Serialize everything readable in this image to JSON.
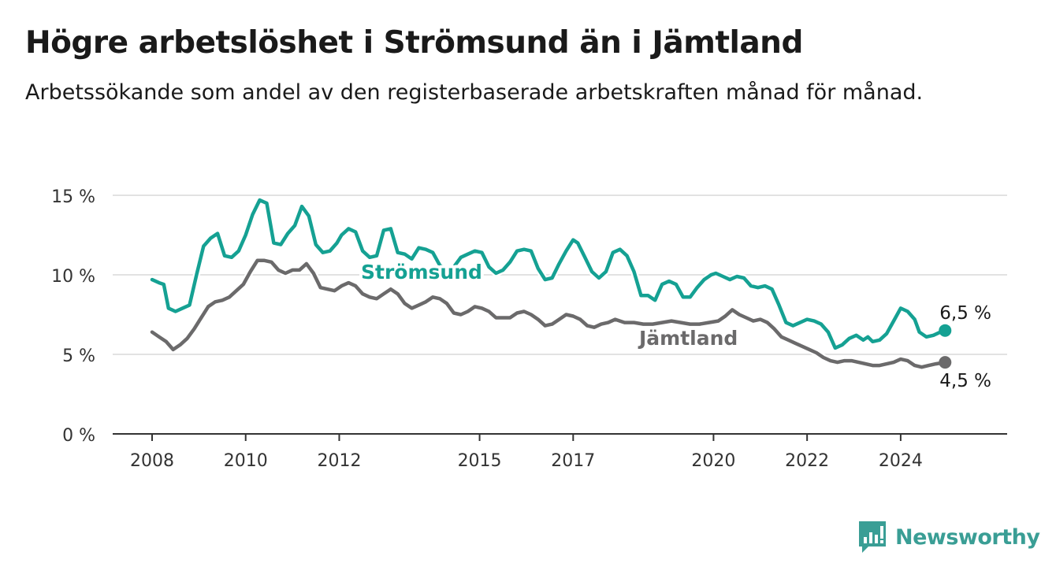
{
  "chart_data": {
    "type": "line",
    "title": "Högre arbetslöshet i Strömsund än i Jämtland",
    "subtitle": "Arbetssökande som andel av den registerbaserade arbetskraften månad för månad.",
    "y_unit": "%",
    "ylim": [
      0,
      15
    ],
    "yticks": [
      0,
      5,
      10,
      15
    ],
    "ytick_labels": [
      "0 %",
      "5 %",
      "10 %",
      "15 %"
    ],
    "xlim": [
      2008.0,
      2025.4
    ],
    "xticks": [
      2008,
      2010,
      2012,
      2015,
      2017,
      2020,
      2022,
      2024
    ],
    "xtick_labels": [
      "2008",
      "2010",
      "2012",
      "2015",
      "2017",
      "2020",
      "2022",
      "2024"
    ],
    "grid": true,
    "legend": "inline labels",
    "series": [
      {
        "name": "Strömsund",
        "color": "#15a193",
        "end_label": "6,5 %",
        "points": [
          [
            2008.0,
            9.7
          ],
          [
            2008.15,
            9.5
          ],
          [
            2008.25,
            9.4
          ],
          [
            2008.35,
            7.9
          ],
          [
            2008.5,
            7.7
          ],
          [
            2008.65,
            7.9
          ],
          [
            2008.8,
            8.1
          ],
          [
            2008.95,
            10.0
          ],
          [
            2009.1,
            11.8
          ],
          [
            2009.25,
            12.3
          ],
          [
            2009.4,
            12.6
          ],
          [
            2009.55,
            11.2
          ],
          [
            2009.7,
            11.1
          ],
          [
            2009.85,
            11.5
          ],
          [
            2010.0,
            12.5
          ],
          [
            2010.15,
            13.8
          ],
          [
            2010.3,
            14.7
          ],
          [
            2010.45,
            14.5
          ],
          [
            2010.6,
            12.0
          ],
          [
            2010.75,
            11.9
          ],
          [
            2010.9,
            12.6
          ],
          [
            2011.05,
            13.1
          ],
          [
            2011.2,
            14.3
          ],
          [
            2011.35,
            13.7
          ],
          [
            2011.5,
            11.9
          ],
          [
            2011.65,
            11.4
          ],
          [
            2011.8,
            11.5
          ],
          [
            2011.95,
            12.0
          ],
          [
            2012.05,
            12.5
          ],
          [
            2012.2,
            12.9
          ],
          [
            2012.35,
            12.7
          ],
          [
            2012.5,
            11.5
          ],
          [
            2012.65,
            11.1
          ],
          [
            2012.8,
            11.2
          ],
          [
            2012.95,
            12.8
          ],
          [
            2013.1,
            12.9
          ],
          [
            2013.25,
            11.4
          ],
          [
            2013.4,
            11.3
          ],
          [
            2013.55,
            11.0
          ],
          [
            2013.7,
            11.7
          ],
          [
            2013.85,
            11.6
          ],
          [
            2014.0,
            11.4
          ],
          [
            2014.15,
            10.6
          ],
          [
            2014.3,
            10.3
          ],
          [
            2014.45,
            10.5
          ],
          [
            2014.6,
            11.1
          ],
          [
            2014.75,
            11.3
          ],
          [
            2014.9,
            11.5
          ],
          [
            2015.05,
            11.4
          ],
          [
            2015.2,
            10.5
          ],
          [
            2015.35,
            10.1
          ],
          [
            2015.5,
            10.3
          ],
          [
            2015.65,
            10.8
          ],
          [
            2015.8,
            11.5
          ],
          [
            2015.95,
            11.6
          ],
          [
            2016.1,
            11.5
          ],
          [
            2016.25,
            10.4
          ],
          [
            2016.4,
            9.7
          ],
          [
            2016.55,
            9.8
          ],
          [
            2016.7,
            10.7
          ],
          [
            2016.85,
            11.5
          ],
          [
            2017.0,
            12.2
          ],
          [
            2017.1,
            12.0
          ],
          [
            2017.25,
            11.1
          ],
          [
            2017.4,
            10.2
          ],
          [
            2017.55,
            9.8
          ],
          [
            2017.7,
            10.2
          ],
          [
            2017.85,
            11.4
          ],
          [
            2018.0,
            11.6
          ],
          [
            2018.15,
            11.2
          ],
          [
            2018.3,
            10.2
          ],
          [
            2018.45,
            8.7
          ],
          [
            2018.6,
            8.7
          ],
          [
            2018.75,
            8.4
          ],
          [
            2018.9,
            9.4
          ],
          [
            2019.05,
            9.6
          ],
          [
            2019.2,
            9.4
          ],
          [
            2019.35,
            8.6
          ],
          [
            2019.5,
            8.6
          ],
          [
            2019.65,
            9.2
          ],
          [
            2019.8,
            9.7
          ],
          [
            2019.95,
            10.0
          ],
          [
            2020.05,
            10.1
          ],
          [
            2020.2,
            9.9
          ],
          [
            2020.35,
            9.7
          ],
          [
            2020.5,
            9.9
          ],
          [
            2020.65,
            9.8
          ],
          [
            2020.8,
            9.3
          ],
          [
            2020.95,
            9.2
          ],
          [
            2021.1,
            9.3
          ],
          [
            2021.25,
            9.1
          ],
          [
            2021.4,
            8.1
          ],
          [
            2021.55,
            7.0
          ],
          [
            2021.7,
            6.8
          ],
          [
            2021.85,
            7.0
          ],
          [
            2022.0,
            7.2
          ],
          [
            2022.15,
            7.1
          ],
          [
            2022.3,
            6.9
          ],
          [
            2022.45,
            6.4
          ],
          [
            2022.6,
            5.4
          ],
          [
            2022.75,
            5.6
          ],
          [
            2022.9,
            6.0
          ],
          [
            2023.05,
            6.2
          ],
          [
            2023.2,
            5.9
          ],
          [
            2023.3,
            6.1
          ],
          [
            2023.4,
            5.8
          ],
          [
            2023.55,
            5.9
          ],
          [
            2023.7,
            6.3
          ],
          [
            2023.85,
            7.1
          ],
          [
            2024.0,
            7.9
          ],
          [
            2024.15,
            7.7
          ],
          [
            2024.3,
            7.2
          ],
          [
            2024.4,
            6.4
          ],
          [
            2024.55,
            6.1
          ],
          [
            2024.7,
            6.2
          ],
          [
            2024.85,
            6.4
          ],
          [
            2024.95,
            6.5
          ]
        ]
      },
      {
        "name": "Jämtland",
        "color": "#6b6a6b",
        "end_label": "4,5 %",
        "points": [
          [
            2008.0,
            6.4
          ],
          [
            2008.15,
            6.1
          ],
          [
            2008.3,
            5.8
          ],
          [
            2008.45,
            5.3
          ],
          [
            2008.6,
            5.6
          ],
          [
            2008.75,
            6.0
          ],
          [
            2008.9,
            6.6
          ],
          [
            2009.05,
            7.3
          ],
          [
            2009.2,
            8.0
          ],
          [
            2009.35,
            8.3
          ],
          [
            2009.5,
            8.4
          ],
          [
            2009.65,
            8.6
          ],
          [
            2009.8,
            9.0
          ],
          [
            2009.95,
            9.4
          ],
          [
            2010.1,
            10.2
          ],
          [
            2010.25,
            10.9
          ],
          [
            2010.4,
            10.9
          ],
          [
            2010.55,
            10.8
          ],
          [
            2010.7,
            10.3
          ],
          [
            2010.85,
            10.1
          ],
          [
            2011.0,
            10.3
          ],
          [
            2011.15,
            10.3
          ],
          [
            2011.3,
            10.7
          ],
          [
            2011.45,
            10.1
          ],
          [
            2011.6,
            9.2
          ],
          [
            2011.75,
            9.1
          ],
          [
            2011.9,
            9.0
          ],
          [
            2012.05,
            9.3
          ],
          [
            2012.2,
            9.5
          ],
          [
            2012.35,
            9.3
          ],
          [
            2012.5,
            8.8
          ],
          [
            2012.65,
            8.6
          ],
          [
            2012.8,
            8.5
          ],
          [
            2012.95,
            8.8
          ],
          [
            2013.1,
            9.1
          ],
          [
            2013.25,
            8.8
          ],
          [
            2013.4,
            8.2
          ],
          [
            2013.55,
            7.9
          ],
          [
            2013.7,
            8.1
          ],
          [
            2013.85,
            8.3
          ],
          [
            2014.0,
            8.6
          ],
          [
            2014.15,
            8.5
          ],
          [
            2014.3,
            8.2
          ],
          [
            2014.45,
            7.6
          ],
          [
            2014.6,
            7.5
          ],
          [
            2014.75,
            7.7
          ],
          [
            2014.9,
            8.0
          ],
          [
            2015.05,
            7.9
          ],
          [
            2015.2,
            7.7
          ],
          [
            2015.35,
            7.3
          ],
          [
            2015.5,
            7.3
          ],
          [
            2015.65,
            7.3
          ],
          [
            2015.8,
            7.6
          ],
          [
            2015.95,
            7.7
          ],
          [
            2016.1,
            7.5
          ],
          [
            2016.25,
            7.2
          ],
          [
            2016.4,
            6.8
          ],
          [
            2016.55,
            6.9
          ],
          [
            2016.7,
            7.2
          ],
          [
            2016.85,
            7.5
          ],
          [
            2017.0,
            7.4
          ],
          [
            2017.15,
            7.2
          ],
          [
            2017.3,
            6.8
          ],
          [
            2017.45,
            6.7
          ],
          [
            2017.6,
            6.9
          ],
          [
            2017.75,
            7.0
          ],
          [
            2017.9,
            7.2
          ],
          [
            2018.1,
            7.0
          ],
          [
            2018.3,
            7.0
          ],
          [
            2018.5,
            6.9
          ],
          [
            2018.7,
            6.9
          ],
          [
            2018.9,
            7.0
          ],
          [
            2019.1,
            7.1
          ],
          [
            2019.3,
            7.0
          ],
          [
            2019.5,
            6.9
          ],
          [
            2019.7,
            6.9
          ],
          [
            2019.9,
            7.0
          ],
          [
            2020.1,
            7.1
          ],
          [
            2020.25,
            7.4
          ],
          [
            2020.4,
            7.8
          ],
          [
            2020.55,
            7.5
          ],
          [
            2020.7,
            7.3
          ],
          [
            2020.85,
            7.1
          ],
          [
            2021.0,
            7.2
          ],
          [
            2021.15,
            7.0
          ],
          [
            2021.3,
            6.6
          ],
          [
            2021.45,
            6.1
          ],
          [
            2021.6,
            5.9
          ],
          [
            2021.75,
            5.7
          ],
          [
            2021.9,
            5.5
          ],
          [
            2022.05,
            5.3
          ],
          [
            2022.2,
            5.1
          ],
          [
            2022.35,
            4.8
          ],
          [
            2022.5,
            4.6
          ],
          [
            2022.65,
            4.5
          ],
          [
            2022.8,
            4.6
          ],
          [
            2022.95,
            4.6
          ],
          [
            2023.1,
            4.5
          ],
          [
            2023.25,
            4.4
          ],
          [
            2023.4,
            4.3
          ],
          [
            2023.55,
            4.3
          ],
          [
            2023.7,
            4.4
          ],
          [
            2023.85,
            4.5
          ],
          [
            2024.0,
            4.7
          ],
          [
            2024.15,
            4.6
          ],
          [
            2024.3,
            4.3
          ],
          [
            2024.45,
            4.2
          ],
          [
            2024.6,
            4.3
          ],
          [
            2024.75,
            4.4
          ],
          [
            2024.95,
            4.5
          ]
        ]
      }
    ],
    "point_labels": {
      "stromsund_end": "6,5 %",
      "jamtland_end": "4,5 %"
    }
  },
  "brand": {
    "name": "Newsworthy",
    "color": "#3a9e95",
    "icon": "newsworthy-logo-icon"
  }
}
